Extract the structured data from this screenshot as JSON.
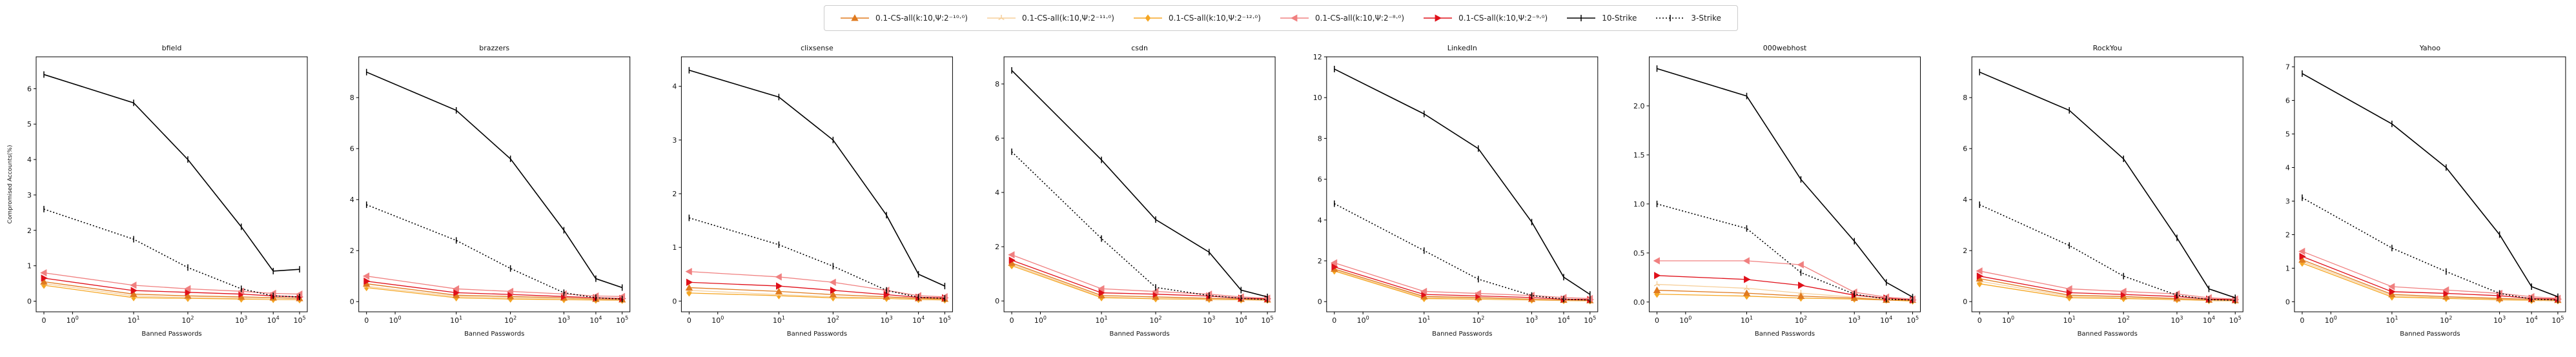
{
  "figure": {
    "ylabel": "Compromised Accounts(%)",
    "xlabel": "Banned Passwords",
    "x_tick_labels": [
      "0",
      "10^0",
      "10^1",
      "10^2",
      "10^3",
      "10^4",
      "10^5"
    ],
    "legend_placement": "top-center",
    "legend": [
      {
        "name": "0.1-CS-all(k:10,Ψ:2⁻¹⁰·⁰)",
        "color": "#e07a1f",
        "marker": "triangle-up",
        "linestyle": "solid"
      },
      {
        "name": "0.1-CS-all(k:10,Ψ:2⁻¹¹·⁰)",
        "color": "#f6cf9a",
        "marker": "tri-up",
        "linestyle": "solid"
      },
      {
        "name": "0.1-CS-all(k:10,Ψ:2⁻¹²·⁰)",
        "color": "#f5a623",
        "marker": "diamond",
        "linestyle": "solid"
      },
      {
        "name": "0.1-CS-all(k:10,Ψ:2⁻⁸·⁰)",
        "color": "#f08080",
        "marker": "triangle-left",
        "linestyle": "solid"
      },
      {
        "name": "0.1-CS-all(k:10,Ψ:2⁻⁹·⁰)",
        "color": "#e0101a",
        "marker": "triangle-right",
        "linestyle": "solid"
      },
      {
        "name": "10-Strike",
        "color": "#000000",
        "marker": "vline",
        "linestyle": "solid"
      },
      {
        "name": "3-Strike",
        "color": "#000000",
        "marker": "vline",
        "linestyle": "dotted"
      }
    ]
  },
  "chart_data": [
    {
      "type": "line",
      "title": "bfield",
      "xscale": "symlog",
      "x": [
        0,
        10,
        100,
        1000,
        10000,
        100000
      ],
      "ylim": [
        -0.3,
        6.9
      ],
      "yticks": [
        0,
        1,
        2,
        3,
        4,
        5,
        6
      ],
      "series": [
        {
          "name": "10-Strike",
          "values": [
            6.4,
            5.6,
            4.0,
            2.1,
            0.85,
            0.9
          ]
        },
        {
          "name": "3-Strike",
          "values": [
            2.6,
            1.75,
            0.95,
            0.35,
            0.15,
            0.12
          ]
        },
        {
          "name": "0.1-CS-all(k:10,Ψ:2⁻⁸·⁰)",
          "values": [
            0.8,
            0.45,
            0.35,
            0.28,
            0.22,
            0.2
          ]
        },
        {
          "name": "0.1-CS-all(k:10,Ψ:2⁻⁹·⁰)",
          "values": [
            0.65,
            0.3,
            0.25,
            0.2,
            0.15,
            0.12
          ]
        },
        {
          "name": "0.1-CS-all(k:10,Ψ:2⁻¹⁰·⁰)",
          "values": [
            0.55,
            0.2,
            0.15,
            0.12,
            0.1,
            0.08
          ]
        },
        {
          "name": "0.1-CS-all(k:10,Ψ:2⁻¹¹·⁰)",
          "values": [
            0.5,
            0.15,
            0.1,
            0.08,
            0.06,
            0.05
          ]
        },
        {
          "name": "0.1-CS-all(k:10,Ψ:2⁻¹²·⁰)",
          "values": [
            0.45,
            0.1,
            0.08,
            0.06,
            0.05,
            0.04
          ]
        }
      ]
    },
    {
      "type": "line",
      "title": "brazzers",
      "xscale": "symlog",
      "x": [
        0,
        10,
        100,
        1000,
        10000,
        100000
      ],
      "ylim": [
        -0.4,
        9.6
      ],
      "yticks": [
        0,
        2,
        4,
        6,
        8
      ],
      "series": [
        {
          "name": "10-Strike",
          "values": [
            9.0,
            7.5,
            5.6,
            2.8,
            0.9,
            0.55
          ]
        },
        {
          "name": "3-Strike",
          "values": [
            3.8,
            2.4,
            1.3,
            0.35,
            0.15,
            0.1
          ]
        },
        {
          "name": "0.1-CS-all(k:10,Ψ:2⁻⁸·⁰)",
          "values": [
            1.0,
            0.5,
            0.4,
            0.3,
            0.22,
            0.2
          ]
        },
        {
          "name": "0.1-CS-all(k:10,Ψ:2⁻⁹·⁰)",
          "values": [
            0.8,
            0.35,
            0.28,
            0.2,
            0.15,
            0.12
          ]
        },
        {
          "name": "0.1-CS-all(k:10,Ψ:2⁻¹⁰·⁰)",
          "values": [
            0.7,
            0.25,
            0.2,
            0.15,
            0.1,
            0.08
          ]
        },
        {
          "name": "0.1-CS-all(k:10,Ψ:2⁻¹¹·⁰)",
          "values": [
            0.6,
            0.2,
            0.15,
            0.1,
            0.08,
            0.06
          ]
        },
        {
          "name": "0.1-CS-all(k:10,Ψ:2⁻¹²·⁰)",
          "values": [
            0.55,
            0.15,
            0.1,
            0.08,
            0.06,
            0.05
          ]
        }
      ]
    },
    {
      "type": "line",
      "title": "clixsense",
      "xscale": "symlog",
      "x": [
        0,
        10,
        100,
        1000,
        10000,
        100000
      ],
      "ylim": [
        -0.2,
        4.55
      ],
      "yticks": [
        0,
        1,
        2,
        3,
        4
      ],
      "series": [
        {
          "name": "10-Strike",
          "values": [
            4.3,
            3.8,
            3.0,
            1.6,
            0.5,
            0.28
          ]
        },
        {
          "name": "3-Strike",
          "values": [
            1.55,
            1.05,
            0.65,
            0.2,
            0.07,
            0.05
          ]
        },
        {
          "name": "0.1-CS-all(k:10,Ψ:2⁻⁸·⁰)",
          "values": [
            0.55,
            0.45,
            0.35,
            0.2,
            0.1,
            0.08
          ]
        },
        {
          "name": "0.1-CS-all(k:10,Ψ:2⁻⁹·⁰)",
          "values": [
            0.35,
            0.28,
            0.2,
            0.12,
            0.07,
            0.06
          ]
        },
        {
          "name": "0.1-CS-all(k:10,Ψ:2⁻¹⁰·⁰)",
          "values": [
            0.25,
            0.18,
            0.12,
            0.08,
            0.05,
            0.04
          ]
        },
        {
          "name": "0.1-CS-all(k:10,Ψ:2⁻¹¹·⁰)",
          "values": [
            0.2,
            0.12,
            0.08,
            0.06,
            0.04,
            0.03
          ]
        },
        {
          "name": "0.1-CS-all(k:10,Ψ:2⁻¹²·⁰)",
          "values": [
            0.15,
            0.1,
            0.06,
            0.05,
            0.03,
            0.02
          ]
        }
      ]
    },
    {
      "type": "line",
      "title": "csdn",
      "xscale": "symlog",
      "x": [
        0,
        10,
        100,
        1000,
        10000,
        100000
      ],
      "ylim": [
        -0.4,
        9.0
      ],
      "yticks": [
        0,
        2,
        4,
        6,
        8
      ],
      "series": [
        {
          "name": "10-Strike",
          "values": [
            8.5,
            5.2,
            3.0,
            1.8,
            0.4,
            0.15
          ]
        },
        {
          "name": "3-Strike",
          "values": [
            5.5,
            2.3,
            0.5,
            0.2,
            0.1,
            0.05
          ]
        },
        {
          "name": "0.1-CS-all(k:10,Ψ:2⁻⁸·⁰)",
          "values": [
            1.7,
            0.45,
            0.35,
            0.25,
            0.15,
            0.1
          ]
        },
        {
          "name": "0.1-CS-all(k:10,Ψ:2⁻⁹·⁰)",
          "values": [
            1.5,
            0.3,
            0.25,
            0.18,
            0.1,
            0.08
          ]
        },
        {
          "name": "0.1-CS-all(k:10,Ψ:2⁻¹⁰·⁰)",
          "values": [
            1.4,
            0.2,
            0.15,
            0.1,
            0.07,
            0.05
          ]
        },
        {
          "name": "0.1-CS-all(k:10,Ψ:2⁻¹¹·⁰)",
          "values": [
            1.35,
            0.15,
            0.1,
            0.08,
            0.05,
            0.04
          ]
        },
        {
          "name": "0.1-CS-all(k:10,Ψ:2⁻¹²·⁰)",
          "values": [
            1.3,
            0.12,
            0.08,
            0.06,
            0.04,
            0.03
          ]
        }
      ]
    },
    {
      "type": "line",
      "title": "LinkedIn",
      "xscale": "symlog",
      "x": [
        0,
        10,
        100,
        1000,
        10000,
        100000
      ],
      "ylim": [
        -0.5,
        12.0
      ],
      "yticks": [
        0,
        2,
        4,
        6,
        8,
        10,
        12
      ],
      "series": [
        {
          "name": "10-Strike",
          "values": [
            11.4,
            9.2,
            7.5,
            3.9,
            1.2,
            0.35
          ]
        },
        {
          "name": "3-Strike",
          "values": [
            4.8,
            2.5,
            1.1,
            0.3,
            0.12,
            0.08
          ]
        },
        {
          "name": "0.1-CS-all(k:10,Ψ:2⁻⁸·⁰)",
          "values": [
            1.9,
            0.5,
            0.4,
            0.3,
            0.2,
            0.15
          ]
        },
        {
          "name": "0.1-CS-all(k:10,Ψ:2⁻⁹·⁰)",
          "values": [
            1.7,
            0.35,
            0.28,
            0.2,
            0.12,
            0.1
          ]
        },
        {
          "name": "0.1-CS-all(k:10,Ψ:2⁻¹⁰·⁰)",
          "values": [
            1.6,
            0.25,
            0.2,
            0.12,
            0.08,
            0.06
          ]
        },
        {
          "name": "0.1-CS-all(k:10,Ψ:2⁻¹¹·⁰)",
          "values": [
            1.55,
            0.2,
            0.15,
            0.1,
            0.06,
            0.05
          ]
        },
        {
          "name": "0.1-CS-all(k:10,Ψ:2⁻¹²·⁰)",
          "values": [
            1.5,
            0.15,
            0.12,
            0.08,
            0.05,
            0.04
          ]
        }
      ]
    },
    {
      "type": "line",
      "title": "000webhost",
      "xscale": "symlog",
      "x": [
        0,
        10,
        100,
        1000,
        10000,
        100000
      ],
      "ylim": [
        -0.1,
        2.5
      ],
      "yticks": [
        0.0,
        0.5,
        1.0,
        1.5,
        2.0
      ],
      "series": [
        {
          "name": "10-Strike",
          "values": [
            2.38,
            2.1,
            1.25,
            0.62,
            0.2,
            0.05
          ]
        },
        {
          "name": "3-Strike",
          "values": [
            1.0,
            0.75,
            0.3,
            0.08,
            0.03,
            0.02
          ]
        },
        {
          "name": "0.1-CS-all(k:10,Ψ:2⁻⁸·⁰)",
          "values": [
            0.42,
            0.42,
            0.38,
            0.1,
            0.05,
            0.03
          ]
        },
        {
          "name": "0.1-CS-all(k:10,Ψ:2⁻⁹·⁰)",
          "values": [
            0.27,
            0.23,
            0.17,
            0.07,
            0.04,
            0.02
          ]
        },
        {
          "name": "0.1-CS-all(k:10,Ψ:2⁻¹⁰·⁰)",
          "values": [
            0.12,
            0.09,
            0.06,
            0.04,
            0.02,
            0.02
          ]
        },
        {
          "name": "0.1-CS-all(k:10,Ψ:2⁻¹¹·⁰)",
          "values": [
            0.18,
            0.14,
            0.09,
            0.05,
            0.03,
            0.02
          ]
        },
        {
          "name": "0.1-CS-all(k:10,Ψ:2⁻¹²·⁰)",
          "values": [
            0.08,
            0.06,
            0.04,
            0.03,
            0.02,
            0.01
          ]
        }
      ]
    },
    {
      "type": "line",
      "title": "RockYou",
      "xscale": "symlog",
      "x": [
        0,
        10,
        100,
        1000,
        10000,
        100000
      ],
      "ylim": [
        -0.4,
        9.6
      ],
      "yticks": [
        0,
        2,
        4,
        6,
        8
      ],
      "series": [
        {
          "name": "10-Strike",
          "values": [
            9.0,
            7.5,
            5.6,
            2.5,
            0.5,
            0.15
          ]
        },
        {
          "name": "3-Strike",
          "values": [
            3.8,
            2.2,
            1.0,
            0.25,
            0.08,
            0.05
          ]
        },
        {
          "name": "0.1-CS-all(k:10,Ψ:2⁻⁸·⁰)",
          "values": [
            1.2,
            0.5,
            0.4,
            0.3,
            0.15,
            0.1
          ]
        },
        {
          "name": "0.1-CS-all(k:10,Ψ:2⁻⁹·⁰)",
          "values": [
            1.0,
            0.35,
            0.28,
            0.2,
            0.1,
            0.08
          ]
        },
        {
          "name": "0.1-CS-all(k:10,Ψ:2⁻¹⁰·⁰)",
          "values": [
            0.9,
            0.25,
            0.2,
            0.12,
            0.07,
            0.05
          ]
        },
        {
          "name": "0.1-CS-all(k:10,Ψ:2⁻¹¹·⁰)",
          "values": [
            0.8,
            0.2,
            0.15,
            0.1,
            0.05,
            0.04
          ]
        },
        {
          "name": "0.1-CS-all(k:10,Ψ:2⁻¹²·⁰)",
          "values": [
            0.7,
            0.15,
            0.12,
            0.08,
            0.04,
            0.03
          ]
        }
      ]
    },
    {
      "type": "line",
      "title": "Yahoo",
      "xscale": "symlog",
      "x": [
        0,
        10,
        100,
        1000,
        10000,
        100000
      ],
      "ylim": [
        -0.3,
        7.3
      ],
      "yticks": [
        0,
        1,
        2,
        3,
        4,
        5,
        6,
        7
      ],
      "series": [
        {
          "name": "10-Strike",
          "values": [
            6.8,
            5.3,
            4.0,
            2.0,
            0.45,
            0.15
          ]
        },
        {
          "name": "3-Strike",
          "values": [
            3.1,
            1.6,
            0.9,
            0.25,
            0.08,
            0.05
          ]
        },
        {
          "name": "0.1-CS-all(k:10,Ψ:2⁻⁸·⁰)",
          "values": [
            1.5,
            0.45,
            0.35,
            0.25,
            0.15,
            0.1
          ]
        },
        {
          "name": "0.1-CS-all(k:10,Ψ:2⁻⁹·⁰)",
          "values": [
            1.35,
            0.3,
            0.25,
            0.18,
            0.1,
            0.08
          ]
        },
        {
          "name": "0.1-CS-all(k:10,Ψ:2⁻¹⁰·⁰)",
          "values": [
            1.25,
            0.22,
            0.15,
            0.1,
            0.07,
            0.05
          ]
        },
        {
          "name": "0.1-CS-all(k:10,Ψ:2⁻¹¹·⁰)",
          "values": [
            1.2,
            0.18,
            0.12,
            0.08,
            0.05,
            0.04
          ]
        },
        {
          "name": "0.1-CS-all(k:10,Ψ:2⁻¹²·⁰)",
          "values": [
            1.15,
            0.14,
            0.1,
            0.06,
            0.04,
            0.03
          ]
        }
      ]
    }
  ]
}
